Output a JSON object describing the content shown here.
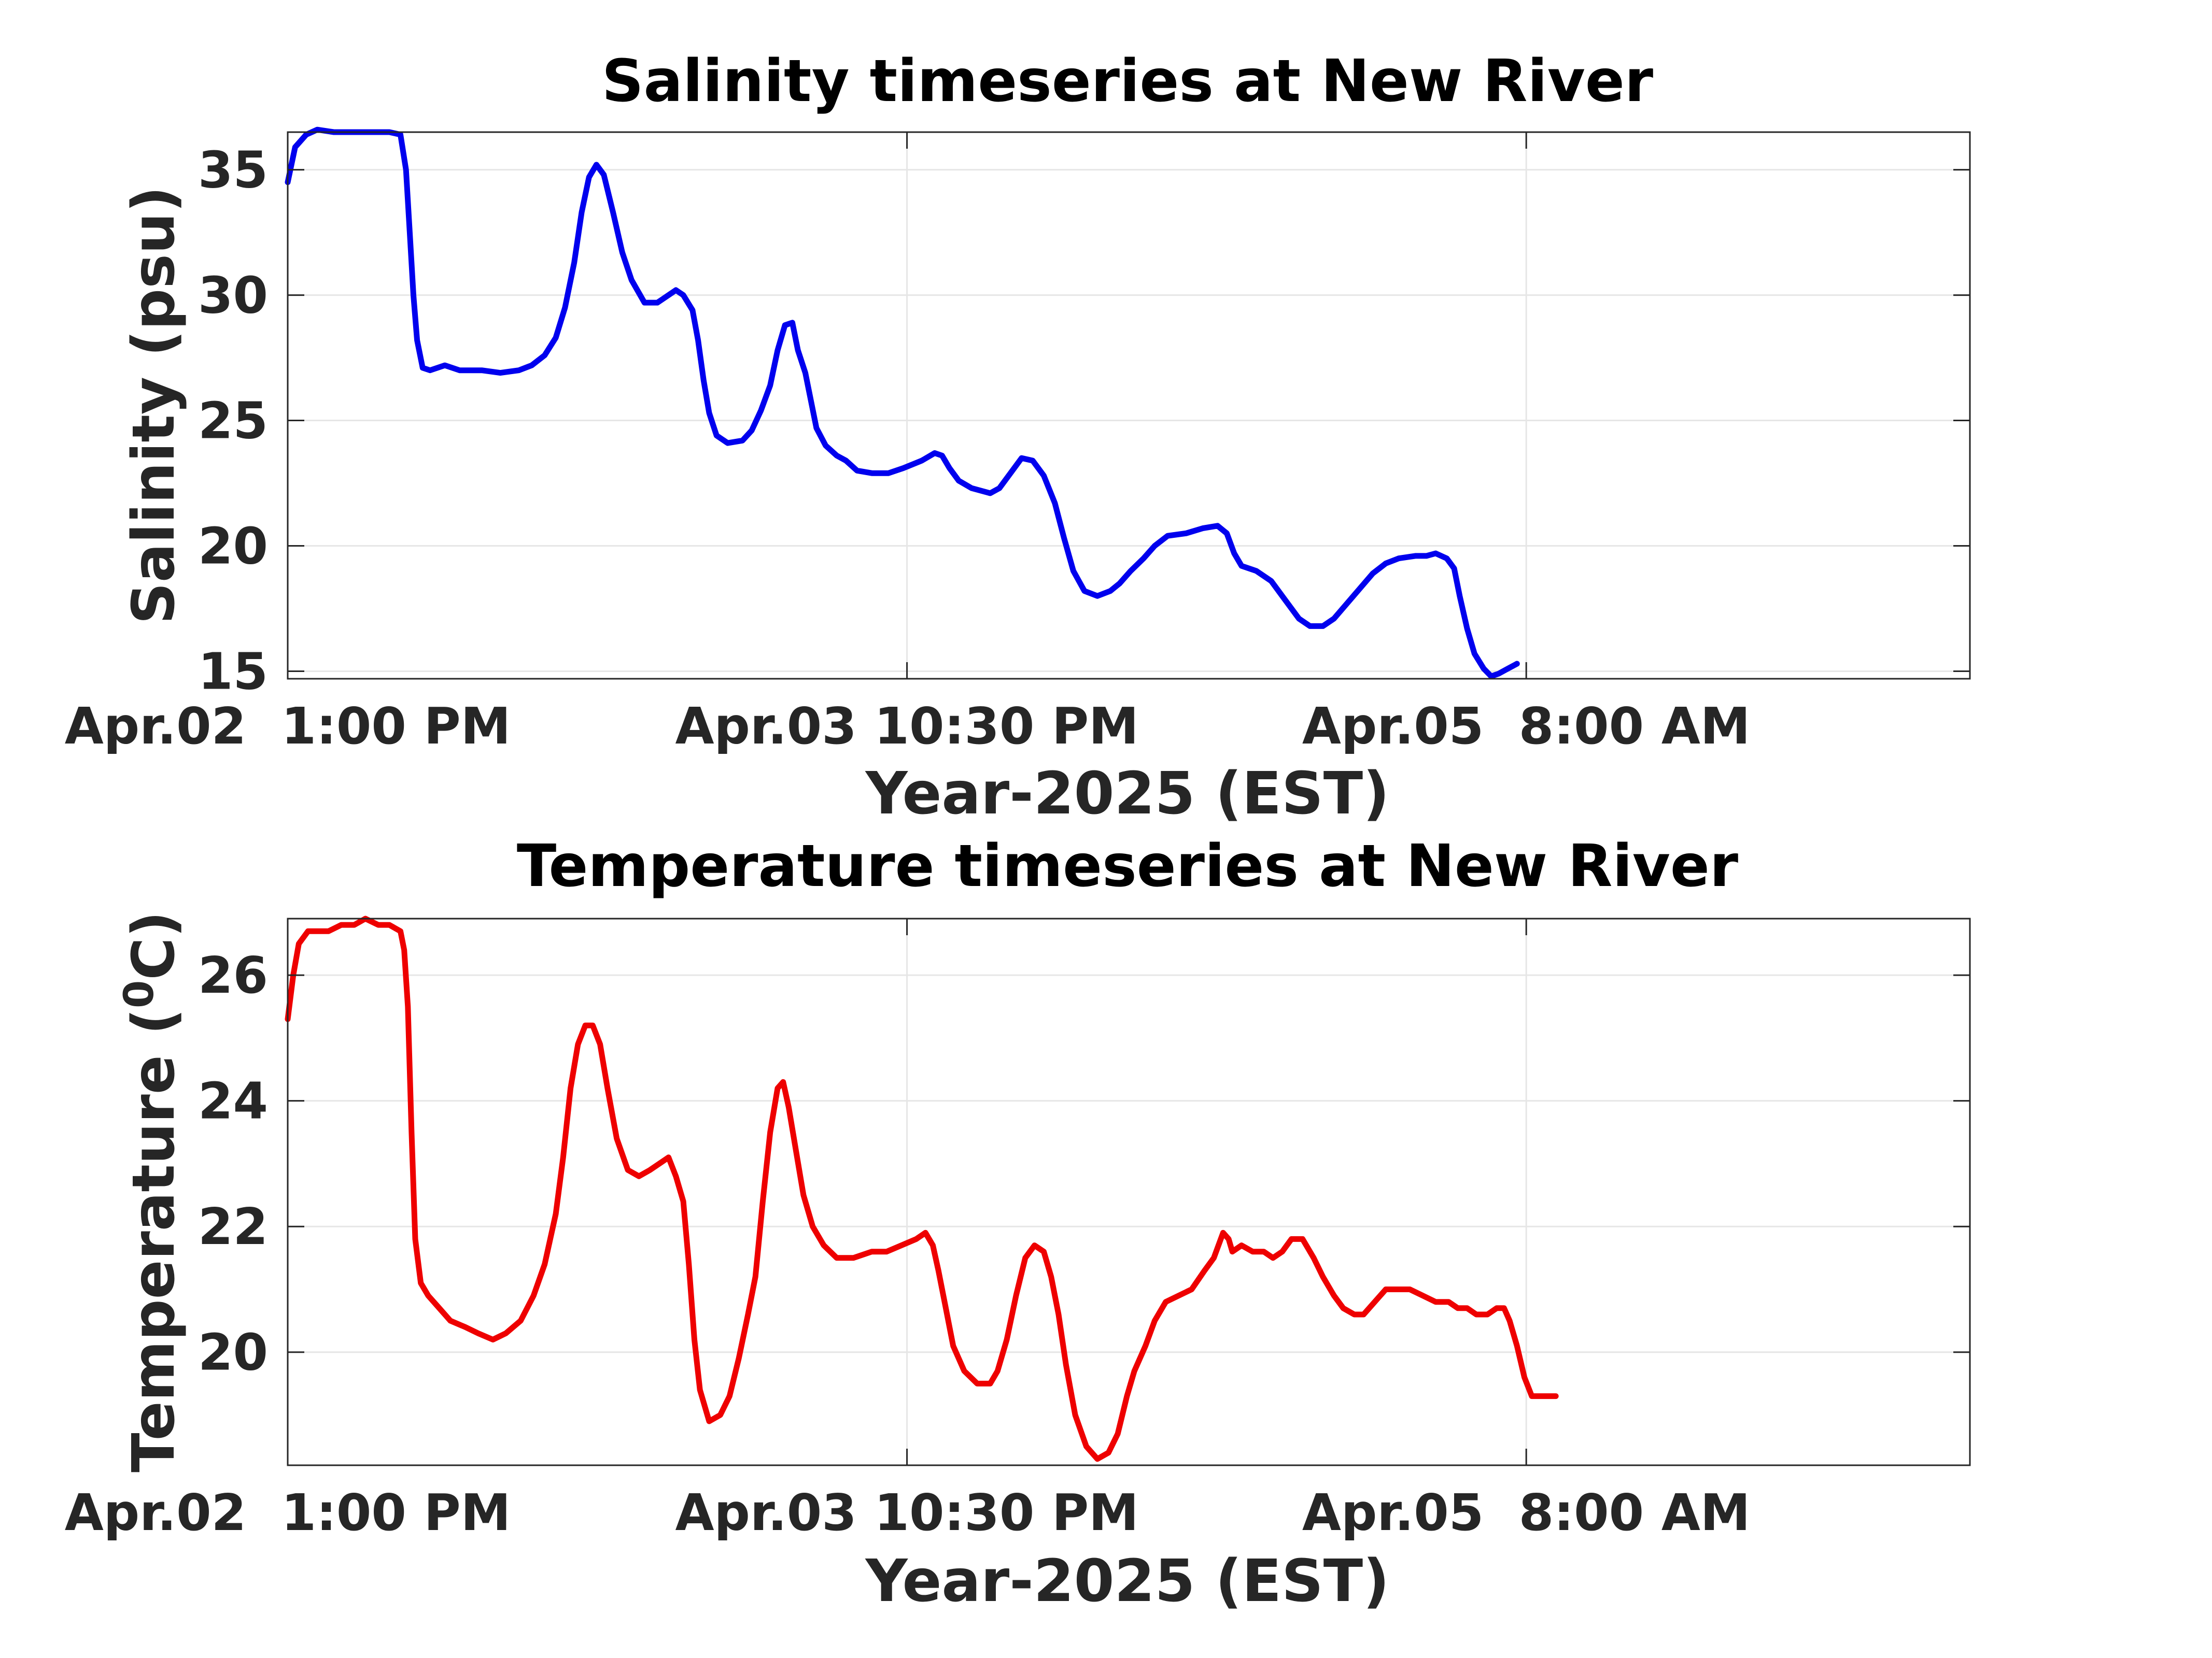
{
  "chart_data": [
    {
      "type": "line",
      "title": "Salinity timeseries at New River",
      "xlabel": "Year-2025 (EST)",
      "ylabel": "Salinity (psu)",
      "ylim": [
        14.7,
        36.5
      ],
      "yticks": [
        15,
        20,
        25,
        30,
        35
      ],
      "xlim_hours": [
        0,
        91
      ],
      "xticks": [
        {
          "label": "Apr.02  1:00 PM",
          "hour": 0
        },
        {
          "label": "Apr.03 10:30 PM",
          "hour": 33.5
        },
        {
          "label": "Apr.05  8:00 AM",
          "hour": 67
        }
      ],
      "grid": true,
      "series": [
        {
          "color": "#0000ee",
          "points": [
            [
              0.0,
              34.5
            ],
            [
              0.4,
              35.9
            ],
            [
              1.0,
              36.4
            ],
            [
              1.6,
              36.6
            ],
            [
              2.5,
              36.5
            ],
            [
              3.5,
              36.5
            ],
            [
              4.5,
              36.5
            ],
            [
              5.5,
              36.5
            ],
            [
              6.1,
              36.4
            ],
            [
              6.4,
              35.0
            ],
            [
              6.6,
              32.5
            ],
            [
              6.8,
              30.0
            ],
            [
              7.0,
              28.2
            ],
            [
              7.3,
              27.1
            ],
            [
              7.7,
              27.0
            ],
            [
              8.5,
              27.2
            ],
            [
              9.3,
              27.0
            ],
            [
              10.5,
              27.0
            ],
            [
              11.5,
              26.9
            ],
            [
              12.5,
              27.0
            ],
            [
              13.2,
              27.2
            ],
            [
              13.9,
              27.6
            ],
            [
              14.5,
              28.3
            ],
            [
              15.0,
              29.5
            ],
            [
              15.5,
              31.3
            ],
            [
              15.9,
              33.3
            ],
            [
              16.3,
              34.7
            ],
            [
              16.7,
              35.2
            ],
            [
              17.1,
              34.8
            ],
            [
              17.6,
              33.3
            ],
            [
              18.1,
              31.7
            ],
            [
              18.6,
              30.6
            ],
            [
              19.3,
              29.7
            ],
            [
              20.0,
              29.7
            ],
            [
              20.6,
              30.0
            ],
            [
              21.0,
              30.2
            ],
            [
              21.4,
              30.0
            ],
            [
              21.9,
              29.4
            ],
            [
              22.2,
              28.2
            ],
            [
              22.5,
              26.6
            ],
            [
              22.8,
              25.3
            ],
            [
              23.2,
              24.4
            ],
            [
              23.8,
              24.1
            ],
            [
              24.6,
              24.2
            ],
            [
              25.1,
              24.6
            ],
            [
              25.6,
              25.4
            ],
            [
              26.1,
              26.4
            ],
            [
              26.5,
              27.8
            ],
            [
              26.9,
              28.8
            ],
            [
              27.3,
              28.9
            ],
            [
              27.6,
              27.8
            ],
            [
              28.0,
              26.9
            ],
            [
              28.3,
              25.8
            ],
            [
              28.6,
              24.7
            ],
            [
              29.1,
              24.0
            ],
            [
              29.7,
              23.6
            ],
            [
              30.2,
              23.4
            ],
            [
              30.8,
              23.0
            ],
            [
              31.6,
              22.9
            ],
            [
              32.5,
              22.9
            ],
            [
              33.3,
              23.1
            ],
            [
              34.3,
              23.4
            ],
            [
              35.0,
              23.7
            ],
            [
              35.4,
              23.6
            ],
            [
              35.8,
              23.1
            ],
            [
              36.3,
              22.6
            ],
            [
              37.0,
              22.3
            ],
            [
              38.0,
              22.1
            ],
            [
              38.5,
              22.3
            ],
            [
              39.1,
              22.9
            ],
            [
              39.7,
              23.5
            ],
            [
              40.3,
              23.4
            ],
            [
              40.9,
              22.8
            ],
            [
              41.5,
              21.7
            ],
            [
              42.0,
              20.3
            ],
            [
              42.5,
              19.0
            ],
            [
              43.1,
              18.2
            ],
            [
              43.8,
              18.0
            ],
            [
              44.5,
              18.2
            ],
            [
              45.0,
              18.5
            ],
            [
              45.6,
              19.0
            ],
            [
              46.3,
              19.5
            ],
            [
              46.9,
              20.0
            ],
            [
              47.6,
              20.4
            ],
            [
              48.6,
              20.5
            ],
            [
              49.5,
              20.7
            ],
            [
              50.3,
              20.8
            ],
            [
              50.8,
              20.5
            ],
            [
              51.2,
              19.7
            ],
            [
              51.6,
              19.2
            ],
            [
              52.4,
              19.0
            ],
            [
              53.2,
              18.6
            ],
            [
              53.9,
              17.9
            ],
            [
              54.7,
              17.1
            ],
            [
              55.3,
              16.8
            ],
            [
              56.0,
              16.8
            ],
            [
              56.6,
              17.1
            ],
            [
              57.3,
              17.7
            ],
            [
              58.0,
              18.3
            ],
            [
              58.7,
              18.9
            ],
            [
              59.4,
              19.3
            ],
            [
              60.1,
              19.5
            ],
            [
              61.0,
              19.6
            ],
            [
              61.6,
              19.6
            ],
            [
              62.1,
              19.7
            ],
            [
              62.7,
              19.5
            ],
            [
              63.1,
              19.1
            ],
            [
              63.4,
              18.0
            ],
            [
              63.8,
              16.7
            ],
            [
              64.2,
              15.7
            ],
            [
              64.7,
              15.1
            ],
            [
              65.1,
              14.8
            ],
            [
              65.5,
              14.9
            ],
            [
              66.0,
              15.1
            ],
            [
              66.5,
              15.3
            ]
          ]
        }
      ]
    },
    {
      "type": "line",
      "title": "Temperature timeseries at New River",
      "xlabel": "Year-2025 (EST)",
      "ylabel": "Temperature (",
      "ylabel_sup": "0",
      "ylabel_tail": "C)",
      "ylim": [
        18.2,
        26.9
      ],
      "yticks": [
        20,
        22,
        24,
        26
      ],
      "xlim_hours": [
        0,
        91
      ],
      "xticks": [
        {
          "label": "Apr.02  1:00 PM",
          "hour": 0
        },
        {
          "label": "Apr.03 10:30 PM",
          "hour": 33.5
        },
        {
          "label": "Apr.05  8:00 AM",
          "hour": 67
        }
      ],
      "grid": true,
      "series": [
        {
          "color": "#ee0000",
          "points": [
            [
              0.0,
              25.3
            ],
            [
              0.3,
              26.0
            ],
            [
              0.6,
              26.5
            ],
            [
              1.1,
              26.7
            ],
            [
              1.6,
              26.7
            ],
            [
              2.2,
              26.7
            ],
            [
              2.9,
              26.8
            ],
            [
              3.6,
              26.8
            ],
            [
              4.2,
              26.9
            ],
            [
              4.9,
              26.8
            ],
            [
              5.5,
              26.8
            ],
            [
              6.1,
              26.7
            ],
            [
              6.3,
              26.4
            ],
            [
              6.5,
              25.5
            ],
            [
              6.7,
              23.5
            ],
            [
              6.9,
              21.8
            ],
            [
              7.2,
              21.1
            ],
            [
              7.6,
              20.9
            ],
            [
              8.2,
              20.7
            ],
            [
              8.8,
              20.5
            ],
            [
              9.6,
              20.4
            ],
            [
              10.3,
              20.3
            ],
            [
              11.1,
              20.2
            ],
            [
              11.8,
              20.3
            ],
            [
              12.6,
              20.5
            ],
            [
              13.3,
              20.9
            ],
            [
              13.9,
              21.4
            ],
            [
              14.5,
              22.2
            ],
            [
              14.9,
              23.1
            ],
            [
              15.3,
              24.2
            ],
            [
              15.7,
              24.9
            ],
            [
              16.1,
              25.2
            ],
            [
              16.5,
              25.2
            ],
            [
              16.9,
              24.9
            ],
            [
              17.3,
              24.2
            ],
            [
              17.8,
              23.4
            ],
            [
              18.4,
              22.9
            ],
            [
              19.0,
              22.8
            ],
            [
              19.6,
              22.9
            ],
            [
              20.1,
              23.0
            ],
            [
              20.6,
              23.1
            ],
            [
              21.0,
              22.8
            ],
            [
              21.4,
              22.4
            ],
            [
              21.7,
              21.4
            ],
            [
              22.0,
              20.2
            ],
            [
              22.3,
              19.4
            ],
            [
              22.8,
              18.9
            ],
            [
              23.4,
              19.0
            ],
            [
              23.9,
              19.3
            ],
            [
              24.4,
              19.9
            ],
            [
              24.9,
              20.6
            ],
            [
              25.3,
              21.2
            ],
            [
              25.7,
              22.4
            ],
            [
              26.1,
              23.5
            ],
            [
              26.5,
              24.2
            ],
            [
              26.8,
              24.3
            ],
            [
              27.1,
              23.9
            ],
            [
              27.5,
              23.2
            ],
            [
              27.9,
              22.5
            ],
            [
              28.4,
              22.0
            ],
            [
              29.0,
              21.7
            ],
            [
              29.7,
              21.5
            ],
            [
              30.6,
              21.5
            ],
            [
              31.6,
              21.6
            ],
            [
              32.4,
              21.6
            ],
            [
              33.2,
              21.7
            ],
            [
              34.0,
              21.8
            ],
            [
              34.5,
              21.9
            ],
            [
              34.9,
              21.7
            ],
            [
              35.2,
              21.3
            ],
            [
              35.6,
              20.7
            ],
            [
              36.0,
              20.1
            ],
            [
              36.6,
              19.7
            ],
            [
              37.3,
              19.5
            ],
            [
              38.0,
              19.5
            ],
            [
              38.4,
              19.7
            ],
            [
              38.9,
              20.2
            ],
            [
              39.4,
              20.9
            ],
            [
              39.9,
              21.5
            ],
            [
              40.4,
              21.7
            ],
            [
              40.9,
              21.6
            ],
            [
              41.3,
              21.2
            ],
            [
              41.7,
              20.6
            ],
            [
              42.1,
              19.8
            ],
            [
              42.6,
              19.0
            ],
            [
              43.2,
              18.5
            ],
            [
              43.8,
              18.3
            ],
            [
              44.4,
              18.4
            ],
            [
              44.9,
              18.7
            ],
            [
              45.4,
              19.3
            ],
            [
              45.8,
              19.7
            ],
            [
              46.4,
              20.1
            ],
            [
              46.9,
              20.5
            ],
            [
              47.5,
              20.8
            ],
            [
              48.2,
              20.9
            ],
            [
              48.9,
              21.0
            ],
            [
              49.6,
              21.3
            ],
            [
              50.1,
              21.5
            ],
            [
              50.6,
              21.9
            ],
            [
              50.9,
              21.8
            ],
            [
              51.1,
              21.6
            ],
            [
              51.6,
              21.7
            ],
            [
              52.2,
              21.6
            ],
            [
              52.8,
              21.6
            ],
            [
              53.3,
              21.5
            ],
            [
              53.8,
              21.6
            ],
            [
              54.3,
              21.8
            ],
            [
              54.9,
              21.8
            ],
            [
              55.5,
              21.5
            ],
            [
              56.0,
              21.2
            ],
            [
              56.6,
              20.9
            ],
            [
              57.1,
              20.7
            ],
            [
              57.7,
              20.6
            ],
            [
              58.2,
              20.6
            ],
            [
              58.8,
              20.8
            ],
            [
              59.4,
              21.0
            ],
            [
              60.1,
              21.0
            ],
            [
              60.7,
              21.0
            ],
            [
              61.4,
              20.9
            ],
            [
              62.1,
              20.8
            ],
            [
              62.8,
              20.8
            ],
            [
              63.3,
              20.7
            ],
            [
              63.8,
              20.7
            ],
            [
              64.3,
              20.6
            ],
            [
              64.9,
              20.6
            ],
            [
              65.4,
              20.7
            ],
            [
              65.8,
              20.7
            ],
            [
              66.1,
              20.5
            ],
            [
              66.5,
              20.1
            ],
            [
              66.9,
              19.6
            ],
            [
              67.3,
              19.3
            ],
            [
              68.0,
              19.3
            ],
            [
              68.6,
              19.3
            ]
          ]
        }
      ]
    }
  ]
}
